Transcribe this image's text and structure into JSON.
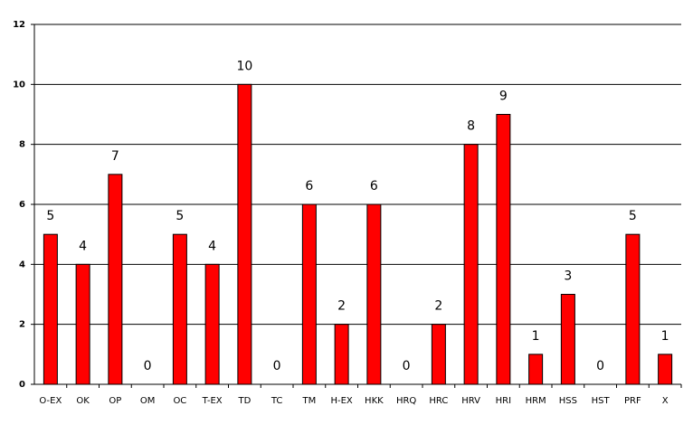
{
  "chart_data": {
    "type": "bar",
    "categories": [
      "O-EX",
      "OK",
      "OP",
      "OM",
      "OC",
      "T-EX",
      "TD",
      "TC",
      "TM",
      "H-EX",
      "HKK",
      "HRQ",
      "HRC",
      "HRV",
      "HRI",
      "HRM",
      "HSS",
      "HST",
      "PRF",
      "X"
    ],
    "values": [
      5,
      4,
      7,
      0,
      5,
      4,
      10,
      0,
      6,
      2,
      6,
      0,
      2,
      8,
      9,
      1,
      3,
      0,
      5,
      1
    ],
    "color": "#ff0000",
    "ylim": [
      0,
      12
    ],
    "yticks": [
      0,
      2,
      4,
      6,
      8,
      10,
      12
    ],
    "grid": true
  }
}
